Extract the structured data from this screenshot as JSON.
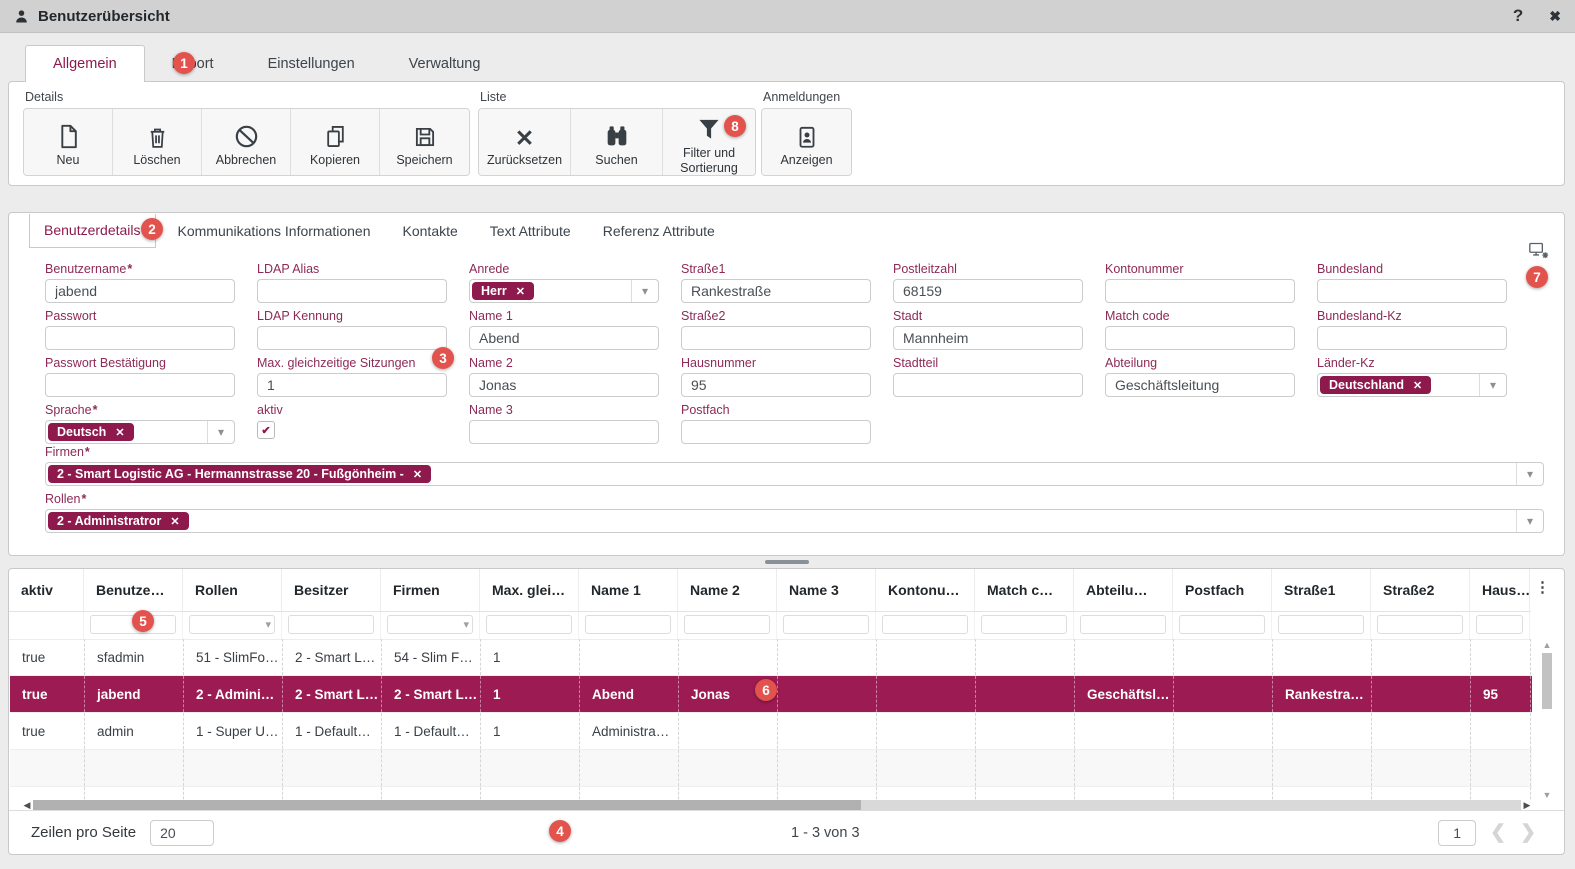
{
  "window": {
    "title": "Benutzerübersicht",
    "help_icon": "?",
    "close_icon": "✖"
  },
  "tabs": {
    "items": [
      {
        "label": "Allgemein",
        "active": true
      },
      {
        "label": "Export",
        "active": false
      },
      {
        "label": "Einstellungen",
        "active": false
      },
      {
        "label": "Verwaltung",
        "active": false
      }
    ]
  },
  "toolbar": {
    "groups": [
      {
        "label": "Details",
        "buttons": [
          {
            "label": "Neu",
            "icon": "new-document"
          },
          {
            "label": "Löschen",
            "icon": "trash"
          },
          {
            "label": "Abbrechen",
            "icon": "cancel"
          },
          {
            "label": "Kopieren",
            "icon": "copy"
          },
          {
            "label": "Speichern",
            "icon": "save"
          }
        ]
      },
      {
        "label": "Liste",
        "buttons": [
          {
            "label": "Zurücksetzen",
            "icon": "reset-x"
          },
          {
            "label": "Suchen",
            "icon": "binoculars"
          },
          {
            "label": "Filter und Sortierung",
            "icon": "filter-funnel",
            "badge": "8"
          }
        ]
      },
      {
        "label": "Anmeldungen",
        "buttons": [
          {
            "label": "Anzeigen",
            "icon": "id-badge"
          }
        ]
      }
    ]
  },
  "subtabs": {
    "items": [
      {
        "label": "Benutzerdetails",
        "active": true
      },
      {
        "label": "Kommunikations Informationen",
        "active": false
      },
      {
        "label": "Kontakte",
        "active": false
      },
      {
        "label": "Text Attribute",
        "active": false
      },
      {
        "label": "Referenz Attribute",
        "active": false
      }
    ]
  },
  "form": {
    "required_marker": "*",
    "tag_close_icon": "✕",
    "fields": [
      {
        "label": "Benutzername",
        "required": true,
        "type": "text",
        "value": "jabend"
      },
      {
        "label": "LDAP Alias",
        "type": "text",
        "value": ""
      },
      {
        "label": "Anrede",
        "type": "tagselect",
        "tag": "Herr"
      },
      {
        "label": "Straße1",
        "type": "text",
        "value": "Rankestraße"
      },
      {
        "label": "Postleitzahl",
        "type": "text",
        "value": "68159"
      },
      {
        "label": "Kontonummer",
        "type": "text",
        "value": ""
      },
      {
        "label": "Bundesland",
        "type": "text",
        "value": ""
      },
      {
        "label": "Passwort",
        "type": "text",
        "value": ""
      },
      {
        "label": "LDAP Kennung",
        "type": "text",
        "value": ""
      },
      {
        "label": "Name 1",
        "type": "text",
        "value": "Abend"
      },
      {
        "label": "Straße2",
        "type": "text",
        "value": ""
      },
      {
        "label": "Stadt",
        "type": "text",
        "value": "Mannheim"
      },
      {
        "label": "Match code",
        "type": "text",
        "value": ""
      },
      {
        "label": "Bundesland-Kz",
        "type": "text",
        "value": ""
      },
      {
        "label": "Passwort Bestätigung",
        "type": "text",
        "value": ""
      },
      {
        "label": "Max. gleichzeitige Sitzungen",
        "type": "text",
        "value": "1"
      },
      {
        "label": "Name 2",
        "type": "text",
        "value": "Jonas"
      },
      {
        "label": "Hausnummer",
        "type": "text",
        "value": "95"
      },
      {
        "label": "Stadtteil",
        "type": "text",
        "value": ""
      },
      {
        "label": "Abteilung",
        "type": "text",
        "value": "Geschäftsleitung"
      },
      {
        "label": "Länder-Kz",
        "type": "tagselect",
        "tag": "Deutschland"
      },
      {
        "label": "Sprache",
        "required": true,
        "type": "tagselect",
        "tag": "Deutsch"
      },
      {
        "label": "aktiv",
        "type": "checkbox",
        "checked": true
      },
      {
        "label": "Name 3",
        "type": "text",
        "value": ""
      },
      {
        "label": "Postfach",
        "type": "text",
        "value": ""
      }
    ],
    "wide_fields": [
      {
        "label": "Firmen",
        "required": true,
        "tag": "2 - Smart Logistic AG - Hermannstrasse 20 - Fußgönheim -"
      },
      {
        "label": "Rollen",
        "required": true,
        "tag": "2 - Administratror"
      }
    ]
  },
  "table": {
    "columns": [
      "aktiv",
      "Benutze…",
      "Rollen",
      "Besitzer",
      "Firmen",
      "Max. glei…",
      "Name 1",
      "Name 2",
      "Name 3",
      "Kontonu…",
      "Match c…",
      "Abteilu…",
      "Postfach",
      "Straße1",
      "Straße2",
      "Haus…"
    ],
    "filter_dropdown_columns": [
      2,
      4
    ],
    "rows": [
      {
        "selected": false,
        "cells": [
          "true",
          "sfadmin",
          "51 - SlimFo…",
          "2 - Smart L…",
          "54 - Slim F…",
          "1",
          "",
          "",
          "",
          "",
          "",
          "",
          "",
          "",
          "",
          ""
        ]
      },
      {
        "selected": true,
        "cells": [
          "true",
          "jabend",
          "2 - Admini…",
          "2 - Smart L…",
          "2 - Smart L…",
          "1",
          "Abend",
          "Jonas",
          "",
          "",
          "",
          "Geschäftsl…",
          "",
          "Rankestra…",
          "",
          "95"
        ]
      },
      {
        "selected": false,
        "cells": [
          "true",
          "admin",
          "1 - Super U…",
          "1 - Default…",
          "1 - Default…",
          "1",
          "Administra…",
          "",
          "",
          "",
          "",
          "",
          "",
          "",
          "",
          ""
        ]
      }
    ]
  },
  "footer": {
    "rows_per_page_label": "Zeilen pro Seite",
    "rows_per_page_value": "20",
    "range_text": "1 - 3 von 3",
    "page_value": "1"
  },
  "callouts": [
    "1",
    "2",
    "3",
    "4",
    "5",
    "6",
    "7",
    "8"
  ],
  "colors": {
    "accent": "#8e1a4d",
    "selected_row": "#9c1b52",
    "badge": "#e2534d"
  }
}
